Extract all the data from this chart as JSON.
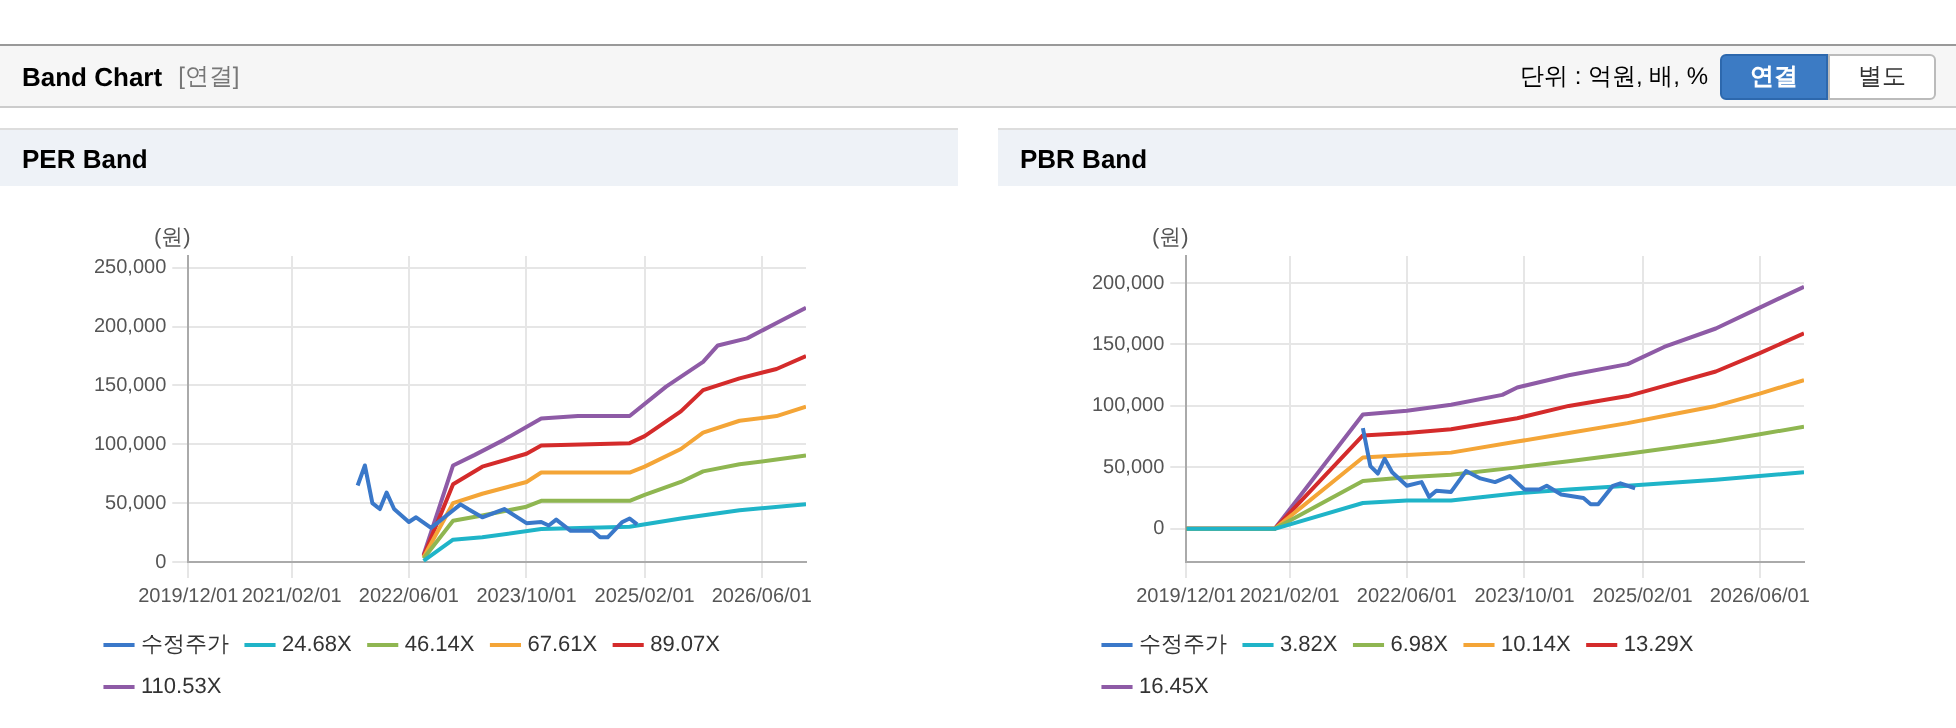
{
  "chart_data": [
    {
      "type": "other",
      "title": "Band Chart",
      "annotations": [
        "[연결]",
        "단위 : 억원, 배, %",
        "연결",
        "별도"
      ]
    },
    {
      "type": "line",
      "title": "PER Band",
      "ylabel": "(원)",
      "marker": "none",
      "line_style": "solid",
      "grid": true,
      "legend": "bottom",
      "xlim": [
        "2019-12-01",
        "2026-12-01"
      ],
      "xticks": [
        {
          "value": "2019-12-01",
          "label": "2019/12/01"
        },
        {
          "value": "2021-02-01",
          "label": "2021/02/01"
        },
        {
          "value": "2022-06-01",
          "label": "2022/06/01"
        },
        {
          "value": "2023-10-01",
          "label": "2023/10/01"
        },
        {
          "value": "2025-02-01",
          "label": "2025/02/01"
        },
        {
          "value": "2026-06-01",
          "label": "2026/06/01"
        }
      ],
      "ylim": [
        0,
        260000
      ],
      "yticks": [
        {
          "value": 0,
          "label": "0"
        },
        {
          "value": 50000,
          "label": "50,000"
        },
        {
          "value": 100000,
          "label": "100,000"
        },
        {
          "value": 150000,
          "label": "150,000"
        },
        {
          "value": 200000,
          "label": "200,000"
        },
        {
          "value": 250000,
          "label": "250,000"
        }
      ],
      "series": [
        {
          "name": "수정주가",
          "color": "#3a78c9",
          "x": [
            "2021-11",
            "2021-12",
            "2022-01",
            "2022-02",
            "2022-03",
            "2022-04",
            "2022-06",
            "2022-07",
            "2022-09",
            "2023-01",
            "2023-02",
            "2023-04",
            "2023-07",
            "2023-10",
            "2023-12",
            "2024-01",
            "2024-02",
            "2024-04",
            "2024-07",
            "2024-08",
            "2024-09",
            "2024-11",
            "2024-12",
            "2025-01"
          ],
          "values": [
            65000,
            82000,
            50000,
            45000,
            59000,
            45000,
            34000,
            38000,
            29000,
            49000,
            45000,
            38000,
            45000,
            33000,
            34000,
            31000,
            36000,
            26500,
            26500,
            21000,
            21000,
            34000,
            37000,
            32000
          ]
        },
        {
          "name": "24.68X",
          "color": "#1fb4c8",
          "x": [
            "2022-08",
            "2022-12",
            "2023-04",
            "2023-12",
            "2024-12",
            "2025-07",
            "2026-03",
            "2026-12"
          ],
          "values": [
            1000,
            19000,
            21000,
            28000,
            30000,
            37000,
            44000,
            49000
          ]
        },
        {
          "name": "46.14X",
          "color": "#8fb651",
          "x": [
            "2022-08",
            "2022-12",
            "2023-04",
            "2023-10",
            "2023-12",
            "2024-12",
            "2025-02",
            "2025-07",
            "2025-10",
            "2026-03",
            "2026-08",
            "2026-12"
          ],
          "values": [
            3000,
            35000,
            39500,
            47000,
            52000,
            52000,
            57000,
            68000,
            77000,
            83000,
            87000,
            90500
          ]
        },
        {
          "name": "67.61X",
          "color": "#f4a537",
          "x": [
            "2022-08",
            "2022-12",
            "2023-04",
            "2023-10",
            "2023-12",
            "2024-12",
            "2025-02",
            "2025-07",
            "2025-10",
            "2026-03",
            "2026-08",
            "2026-12"
          ],
          "values": [
            4000,
            50000,
            58000,
            68000,
            76000,
            76000,
            81000,
            96000,
            110000,
            120000,
            124000,
            132000
          ]
        },
        {
          "name": "89.07X",
          "color": "#d42b2b",
          "x": [
            "2022-08",
            "2022-12",
            "2023-04",
            "2023-10",
            "2023-12",
            "2024-12",
            "2025-02",
            "2025-07",
            "2025-10",
            "2026-03",
            "2026-08",
            "2026-12"
          ],
          "values": [
            5000,
            66000,
            81000,
            92000,
            99000,
            101000,
            107000,
            128000,
            146000,
            156000,
            164000,
            175000
          ]
        },
        {
          "name": "110.53X",
          "color": "#8e5ba6",
          "x": [
            "2022-08",
            "2022-12",
            "2023-03",
            "2023-07",
            "2023-12",
            "2024-05",
            "2024-12",
            "2025-05",
            "2025-10",
            "2025-12",
            "2026-04",
            "2026-08",
            "2026-12"
          ],
          "values": [
            6000,
            82000,
            91000,
            104000,
            122000,
            124000,
            124000,
            149000,
            170000,
            184000,
            190000,
            203000,
            216000
          ]
        }
      ]
    },
    {
      "type": "line",
      "title": "PBR Band",
      "ylabel": "(원)",
      "marker": "none",
      "line_style": "solid",
      "grid": true,
      "legend": "bottom",
      "xlim": [
        "2019-12-01",
        "2026-12-01"
      ],
      "xticks": [
        {
          "value": "2019-12-01",
          "label": "2019/12/01"
        },
        {
          "value": "2021-02-01",
          "label": "2021/02/01"
        },
        {
          "value": "2022-06-01",
          "label": "2022/06/01"
        },
        {
          "value": "2023-10-01",
          "label": "2023/10/01"
        },
        {
          "value": "2025-02-01",
          "label": "2025/02/01"
        },
        {
          "value": "2026-06-01",
          "label": "2026/06/01"
        }
      ],
      "ylim": [
        -27000,
        222000
      ],
      "yticks": [
        {
          "value": 0,
          "label": "0"
        },
        {
          "value": 50000,
          "label": "50,000"
        },
        {
          "value": 100000,
          "label": "100,000"
        },
        {
          "value": 150000,
          "label": "150,000"
        },
        {
          "value": 200000,
          "label": "200,000"
        }
      ],
      "series": [
        {
          "name": "수정주가",
          "color": "#3a78c9",
          "x": [
            "2021-12",
            "2022-01",
            "2022-02",
            "2022-03",
            "2022-04",
            "2022-06",
            "2022-08",
            "2022-09",
            "2022-10",
            "2022-12",
            "2023-02",
            "2023-04",
            "2023-06",
            "2023-08",
            "2023-10",
            "2023-12",
            "2024-01",
            "2024-03",
            "2024-06",
            "2024-07",
            "2024-08",
            "2024-10",
            "2024-11",
            "2025-01"
          ],
          "values": [
            82000,
            51000,
            45000,
            57000,
            46000,
            35000,
            38000,
            26000,
            31000,
            30000,
            47000,
            41000,
            38000,
            43000,
            32000,
            32000,
            35000,
            28000,
            25000,
            20000,
            20000,
            35000,
            37000,
            33000
          ]
        },
        {
          "name": "3.82X",
          "color": "#1fb4c8",
          "x": [
            "2019-12",
            "2020-12",
            "2021-12",
            "2022-06",
            "2022-12",
            "2023-09",
            "2024-04",
            "2024-12",
            "2025-12",
            "2026-12"
          ],
          "values": [
            0,
            0,
            21000,
            23000,
            23000,
            29000,
            32000,
            35000,
            40000,
            46000
          ]
        },
        {
          "name": "6.98X",
          "color": "#8fb651",
          "x": [
            "2019-12",
            "2020-12",
            "2021-12",
            "2022-06",
            "2022-12",
            "2023-09",
            "2024-04",
            "2024-12",
            "2025-06",
            "2025-12",
            "2026-06",
            "2026-12"
          ],
          "values": [
            0,
            0,
            39000,
            42000,
            44000,
            50000,
            55000,
            61000,
            66000,
            71000,
            77000,
            83000
          ]
        },
        {
          "name": "10.14X",
          "color": "#f4a537",
          "x": [
            "2019-12",
            "2020-12",
            "2021-12",
            "2022-06",
            "2022-12",
            "2023-09",
            "2024-04",
            "2024-12",
            "2025-06",
            "2025-12",
            "2026-06",
            "2026-12"
          ],
          "values": [
            0,
            0,
            58000,
            60000,
            62000,
            71000,
            78000,
            86000,
            93000,
            100000,
            110000,
            121000
          ]
        },
        {
          "name": "13.29X",
          "color": "#d42b2b",
          "x": [
            "2019-12",
            "2020-12",
            "2021-12",
            "2022-06",
            "2022-12",
            "2023-09",
            "2024-04",
            "2024-12",
            "2025-06",
            "2025-12",
            "2026-06",
            "2026-12"
          ],
          "values": [
            0,
            0,
            76000,
            78000,
            81000,
            90000,
            100000,
            108000,
            118000,
            128000,
            143000,
            159000
          ]
        },
        {
          "name": "16.45X",
          "color": "#8e5ba6",
          "x": [
            "2019-12",
            "2020-12",
            "2021-12",
            "2022-06",
            "2022-12",
            "2023-07",
            "2023-09",
            "2024-04",
            "2024-12",
            "2025-05",
            "2025-12",
            "2026-06",
            "2026-12"
          ],
          "values": [
            0,
            0,
            93000,
            96000,
            101000,
            109000,
            115000,
            125000,
            134000,
            148000,
            163000,
            180000,
            197000
          ]
        }
      ]
    }
  ]
}
